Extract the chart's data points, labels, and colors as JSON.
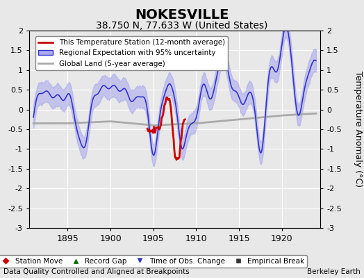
{
  "title": "NOKESVILLE",
  "subtitle": "38.750 N, 77.633 W (United States)",
  "ylabel": "Temperature Anomaly (°C)",
  "xlabel_note": "Data Quality Controlled and Aligned at Breakpoints",
  "xlabel_credit": "Berkeley Earth",
  "xlim": [
    1890.5,
    1924.5
  ],
  "ylim": [
    -3,
    2
  ],
  "yticks": [
    -3,
    -2.5,
    -2,
    -1.5,
    -1,
    -0.5,
    0,
    0.5,
    1,
    1.5,
    2
  ],
  "xticks": [
    1895,
    1900,
    1905,
    1910,
    1915,
    1920
  ],
  "bg_color": "#e8e8e8",
  "plot_bg_color": "#e8e8e8",
  "grid_color": "#ffffff",
  "title_fontsize": 14,
  "subtitle_fontsize": 10,
  "legend_items": [
    {
      "label": "This Temperature Station (12-month average)",
      "color": "#cc0000",
      "lw": 2
    },
    {
      "label": "Regional Expectation with 95% uncertainty",
      "color": "#3333cc",
      "lw": 1.5
    },
    {
      "label": "Global Land (5-year average)",
      "color": "#aaaaaa",
      "lw": 2
    }
  ],
  "bottom_legend": [
    {
      "label": "Station Move",
      "marker": "D",
      "color": "#cc0000"
    },
    {
      "label": "Record Gap",
      "marker": "^",
      "color": "#006600"
    },
    {
      "label": "Time of Obs. Change",
      "marker": "v",
      "color": "#3333cc"
    },
    {
      "label": "Empirical Break",
      "marker": "s",
      "color": "#333333"
    }
  ]
}
